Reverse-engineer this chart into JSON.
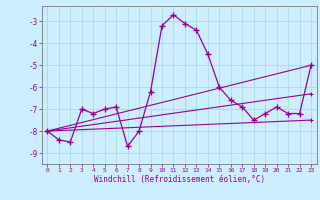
{
  "title": "",
  "xlabel": "Windchill (Refroidissement éolien,°C)",
  "background_color": "#cceeff",
  "line_color": "#990099",
  "grid_color": "#aadddd",
  "xlim": [
    -0.5,
    23.5
  ],
  "ylim": [
    -9.5,
    -2.3
  ],
  "yticks": [
    -9,
    -8,
    -7,
    -6,
    -5,
    -4,
    -3
  ],
  "xticks": [
    0,
    1,
    2,
    3,
    4,
    5,
    6,
    7,
    8,
    9,
    10,
    11,
    12,
    13,
    14,
    15,
    16,
    17,
    18,
    19,
    20,
    21,
    22,
    23
  ],
  "series": {
    "main": {
      "x": [
        0,
        1,
        2,
        3,
        4,
        5,
        6,
        7,
        8,
        9,
        10,
        11,
        12,
        13,
        14,
        15,
        16,
        17,
        18,
        19,
        20,
        21,
        22,
        23
      ],
      "y": [
        -8.0,
        -8.4,
        -8.5,
        -7.0,
        -7.2,
        -7.0,
        -6.9,
        -8.7,
        -8.0,
        -6.2,
        -3.2,
        -2.7,
        -3.1,
        -3.4,
        -4.5,
        -6.0,
        -6.6,
        -6.9,
        -7.5,
        -7.2,
        -6.9,
        -7.2,
        -7.2,
        -5.0
      ]
    },
    "upper_band": {
      "x": [
        0,
        23
      ],
      "y": [
        -8.0,
        -5.0
      ]
    },
    "lower_band": {
      "x": [
        0,
        23
      ],
      "y": [
        -8.0,
        -7.5
      ]
    },
    "mid_band": {
      "x": [
        0,
        23
      ],
      "y": [
        -8.0,
        -6.3
      ]
    }
  }
}
